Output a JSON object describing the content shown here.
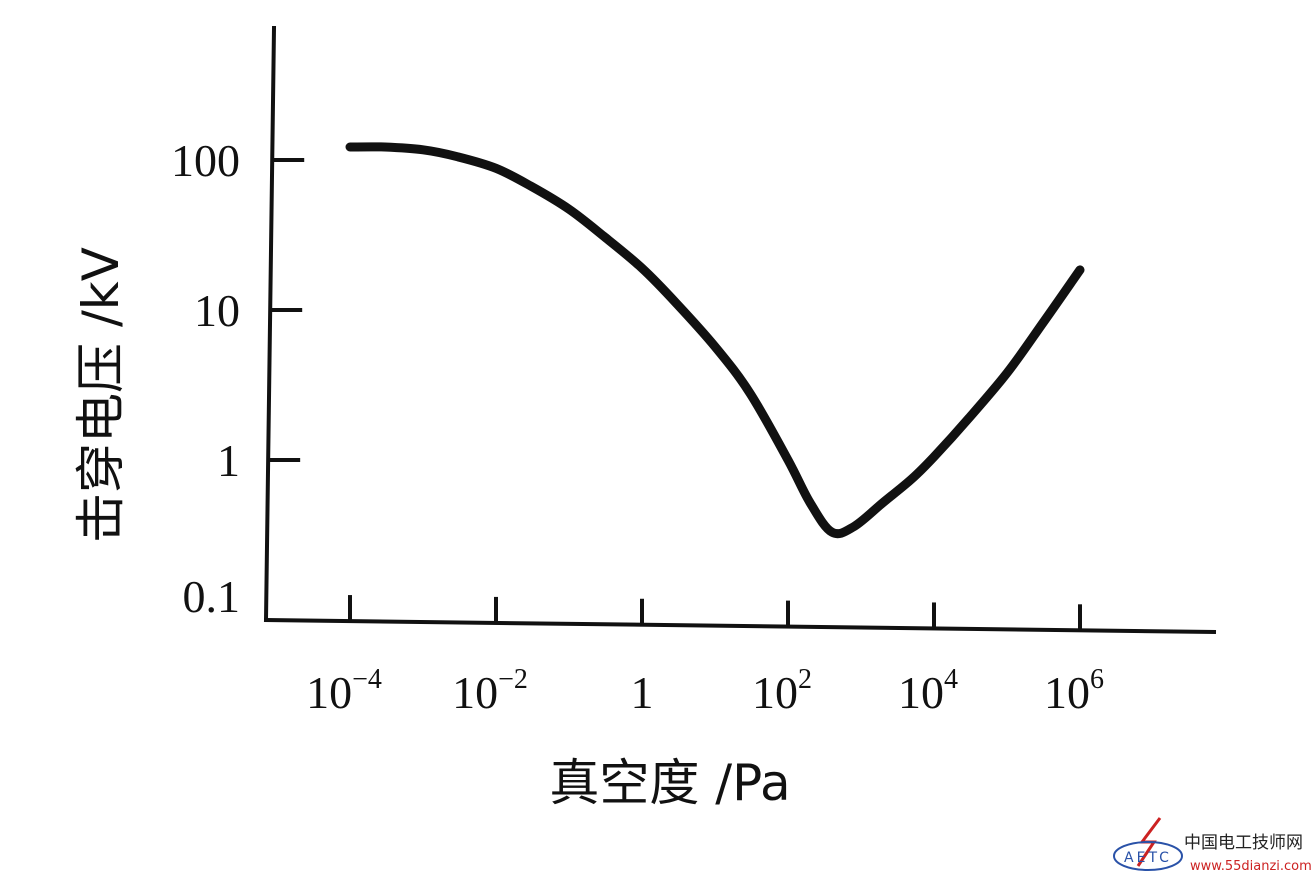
{
  "chart_data": {
    "type": "line",
    "xscale": "log",
    "yscale": "log",
    "xlabel": "真空度 /Pa",
    "ylabel": "击穿电压 /kV",
    "x_ticks": [
      {
        "value": 0.0001,
        "base": "10",
        "exp": "−4"
      },
      {
        "value": 0.01,
        "base": "10",
        "exp": "−2"
      },
      {
        "value": 1,
        "base": "1",
        "exp": ""
      },
      {
        "value": 100,
        "base": "10",
        "exp": "2"
      },
      {
        "value": 10000,
        "base": "10",
        "exp": "4"
      },
      {
        "value": 1000000,
        "base": "10",
        "exp": "6"
      }
    ],
    "y_ticks": [
      {
        "value": 0.1,
        "label": "0.1"
      },
      {
        "value": 1,
        "label": "1"
      },
      {
        "value": 10,
        "label": "10"
      },
      {
        "value": 100,
        "label": "100"
      }
    ],
    "grid": false,
    "series": [
      {
        "x": [
          0.0001,
          0.0003,
          0.001,
          0.003,
          0.01,
          0.03,
          0.1,
          0.3,
          1,
          3,
          10,
          30,
          100,
          200,
          400,
          800,
          2000,
          5000,
          10000,
          30000,
          100000,
          300000,
          1000000
        ],
        "y": [
          122,
          122,
          117,
          105,
          88,
          67,
          47,
          31,
          19,
          11,
          5.7,
          2.8,
          1.0,
          0.52,
          0.33,
          0.36,
          0.52,
          0.75,
          1.05,
          1.9,
          3.8,
          8.0,
          18.5
        ]
      }
    ]
  },
  "watermark": {
    "logo_text": "AETC",
    "site_name": "中国电工技师网",
    "url": "www.55dianzi.com"
  }
}
